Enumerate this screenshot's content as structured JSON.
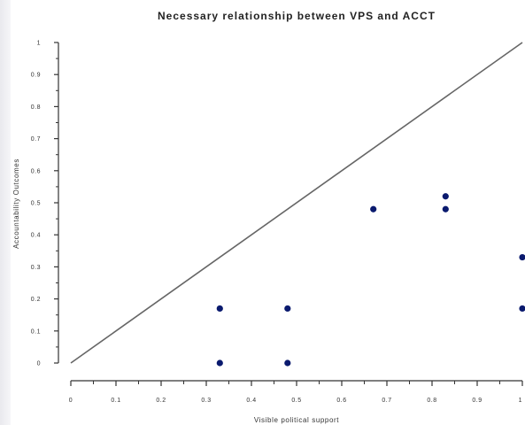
{
  "chart_data": {
    "type": "scatter",
    "title": "Necessary relationship between VPS and ACCT",
    "xlabel": "Visible political support",
    "ylabel": "Accountability Outcomes",
    "xlim": [
      0,
      1
    ],
    "ylim": [
      0,
      1
    ],
    "x_ticks": [
      "0",
      "0.1",
      "0.2",
      "0.3",
      "0.4",
      "0.5",
      "0.6",
      "0.7",
      "0.8",
      "0.9",
      "1"
    ],
    "y_ticks": [
      "0",
      "0.1",
      "0.2",
      "0.3",
      "0.4",
      "0.5",
      "0.6",
      "0.7",
      "0.8",
      "0.9",
      "1"
    ],
    "points": [
      {
        "x": 0.33,
        "y": 0.0
      },
      {
        "x": 0.33,
        "y": 0.17
      },
      {
        "x": 0.48,
        "y": 0.0
      },
      {
        "x": 0.48,
        "y": 0.17
      },
      {
        "x": 0.67,
        "y": 0.48
      },
      {
        "x": 0.83,
        "y": 0.48
      },
      {
        "x": 0.83,
        "y": 0.52
      },
      {
        "x": 1.0,
        "y": 0.17
      },
      {
        "x": 1.0,
        "y": 0.33
      }
    ],
    "reference_line": {
      "x": [
        0,
        1
      ],
      "y": [
        0,
        1
      ]
    },
    "point_color": "#0a1a6e",
    "line_color": "#666666",
    "grid": false,
    "legend": "none"
  }
}
